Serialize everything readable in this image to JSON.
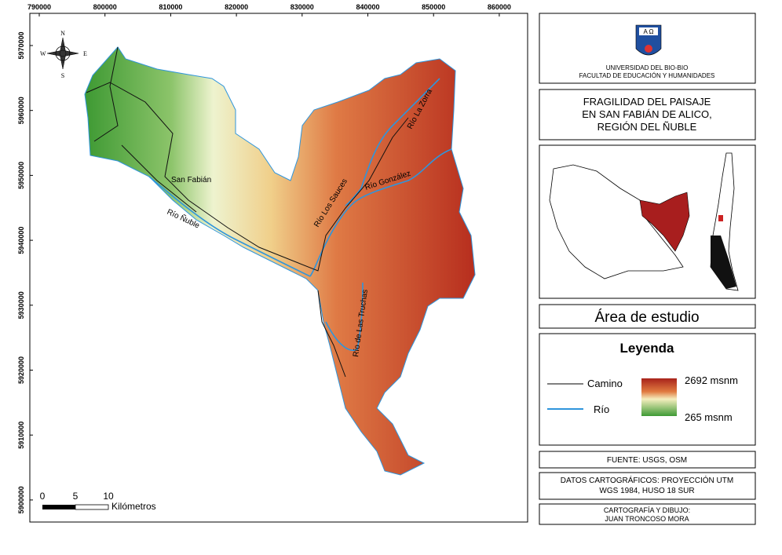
{
  "map": {
    "x_ticks": [
      790000,
      800000,
      810000,
      820000,
      830000,
      840000,
      850000,
      860000
    ],
    "y_ticks": [
      5970000,
      5960000,
      5950000,
      5940000,
      5930000,
      5920000,
      5910000,
      5900000
    ],
    "compass": {
      "n": "N",
      "s": "S",
      "e": "E",
      "w": "W"
    },
    "places": [
      "San Fabián",
      "Río Ñuble",
      "Río Los Sauces",
      "Río González",
      "Río La Zorra",
      "Río de Las Truchas"
    ],
    "scale": {
      "ticks": [
        0,
        5,
        10
      ],
      "unit": "Kilómetros"
    }
  },
  "header": {
    "logo_text": "A Ω",
    "institution": "UNIVERSIDAD DEL BIO-BIO",
    "faculty": "FACULTAD DE EDUCACIÓN Y HUMANIDADES"
  },
  "title": [
    "FRAGILIDAD DEL PAISAJE",
    "EN SAN FABIÁN DE ALICO,",
    "REGIÓN DEL ÑUBLE"
  ],
  "study_area": "Área de estudio",
  "legend": {
    "title": "Leyenda",
    "items": [
      "Camino",
      "Río"
    ],
    "max": "2692 msnm",
    "min": "265 msnm"
  },
  "source": "FUENTE: USGS, OSM",
  "cartographic_data": [
    "DATOS CARTOGRÁFICOS: PROYECCIÓN UTM",
    "WGS 1984, HUSO 18 SUR"
  ],
  "credits": [
    "CARTOGRAFÍA Y DIBUJO:",
    "JUAN TRONCOSO MORA"
  ]
}
